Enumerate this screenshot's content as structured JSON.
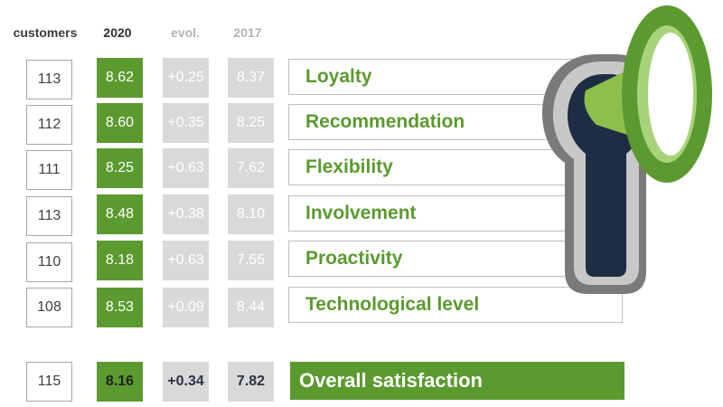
{
  "headers": {
    "customers": "customers",
    "y2020": "2020",
    "evol": "evol.",
    "y2017": "2017"
  },
  "rows": [
    {
      "customers": "113",
      "v2020": "8.62",
      "evol": "+0.25",
      "v2017": "8.37",
      "label": "Loyalty"
    },
    {
      "customers": "112",
      "v2020": "8.60",
      "evol": "+0.35",
      "v2017": "8.25",
      "label": "Recommendation"
    },
    {
      "customers": "111",
      "v2020": "8.25",
      "evol": "+0.63",
      "v2017": "7.62",
      "label": "Flexibility"
    },
    {
      "customers": "113",
      "v2020": "8.48",
      "evol": "+0.38",
      "v2017": "8.10",
      "label": "Involvement"
    },
    {
      "customers": "110",
      "v2020": "8.18",
      "evol": "+0.63",
      "v2017": "7.55",
      "label": "Proactivity"
    },
    {
      "customers": "108",
      "v2020": "8.53",
      "evol": "+0.09",
      "v2017": "8.44",
      "label": "Technological level"
    }
  ],
  "total": {
    "customers": "115",
    "v2020": "8.16",
    "evol": "+0.34",
    "v2017": "7.82",
    "label": "Overall satisfaction"
  },
  "colors": {
    "green": "#5b9a2f",
    "gray_cell": "#d9d9d9",
    "dark_navy": "#1f2d44"
  },
  "icons": [
    "keyhole-megaphone-icon"
  ]
}
